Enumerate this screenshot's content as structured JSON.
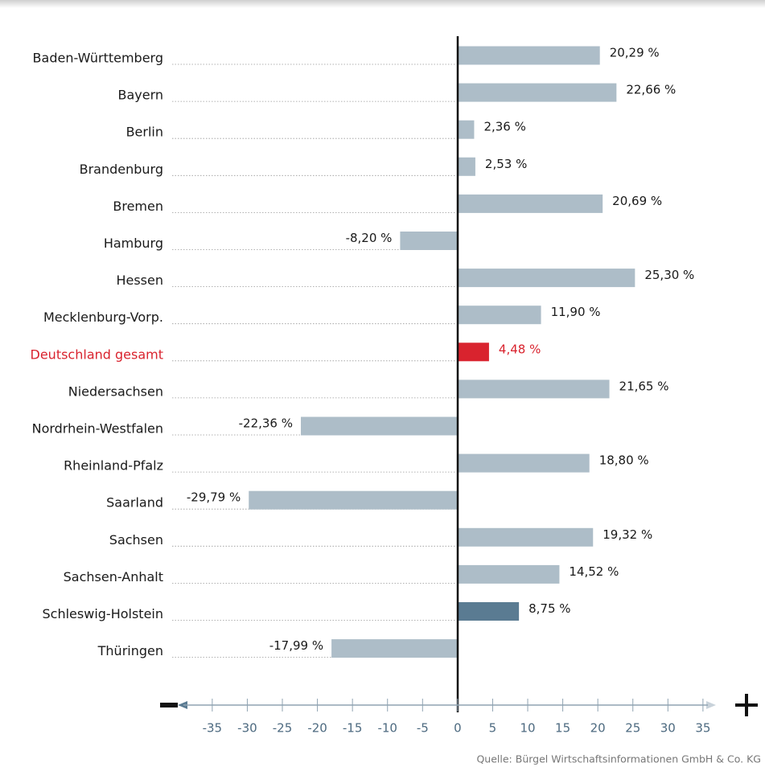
{
  "chart_data": {
    "type": "barh",
    "categories": [
      "Baden-Württemberg",
      "Bayern",
      "Berlin",
      "Brandenburg",
      "Bremen",
      "Hamburg",
      "Hessen",
      "Mecklenburg-Vorp.",
      "Deutschland gesamt",
      "Niedersachsen",
      "Nordrhein-Westfalen",
      "Rheinland-Pfalz",
      "Saarland",
      "Sachsen",
      "Sachsen-Anhalt",
      "Schleswig-Holstein",
      "Thüringen"
    ],
    "values": [
      20.29,
      22.66,
      2.36,
      2.53,
      20.69,
      -8.2,
      25.3,
      11.9,
      4.48,
      21.65,
      -22.36,
      18.8,
      -29.79,
      19.32,
      14.52,
      8.75,
      -17.99
    ],
    "value_labels": [
      "20,29 %",
      "22,66 %",
      "2,36 %",
      "2,53 %",
      "20,69 %",
      "-8,20 %",
      "25,30 %",
      "11,90 %",
      "4,48 %",
      "21,65 %",
      "-22,36 %",
      "18,80 %",
      "-29,79 %",
      "19,32 %",
      "14,52 %",
      "8,75 %",
      "-17,99 %"
    ],
    "colors": [
      "#adbdc8",
      "#adbdc8",
      "#adbdc8",
      "#adbdc8",
      "#adbdc8",
      "#adbdc8",
      "#adbdc8",
      "#adbdc8",
      "#d9232e",
      "#adbdc8",
      "#adbdc8",
      "#adbdc8",
      "#adbdc8",
      "#adbdc8",
      "#adbdc8",
      "#5a7b92",
      "#adbdc8"
    ],
    "category_colors": [
      "#1a1a1a",
      "#1a1a1a",
      "#1a1a1a",
      "#1a1a1a",
      "#1a1a1a",
      "#1a1a1a",
      "#1a1a1a",
      "#1a1a1a",
      "#d9232e",
      "#1a1a1a",
      "#1a1a1a",
      "#1a1a1a",
      "#1a1a1a",
      "#1a1a1a",
      "#1a1a1a",
      "#1a1a1a",
      "#1a1a1a"
    ],
    "xlim": [
      -39,
      36
    ],
    "xticks": [
      -35,
      -30,
      -25,
      -20,
      -15,
      -10,
      -5,
      0,
      5,
      10,
      15,
      20,
      25,
      30,
      35
    ],
    "source": "Quelle: Bürgel Wirtschaftsinformationen GmbH & Co. KG"
  }
}
